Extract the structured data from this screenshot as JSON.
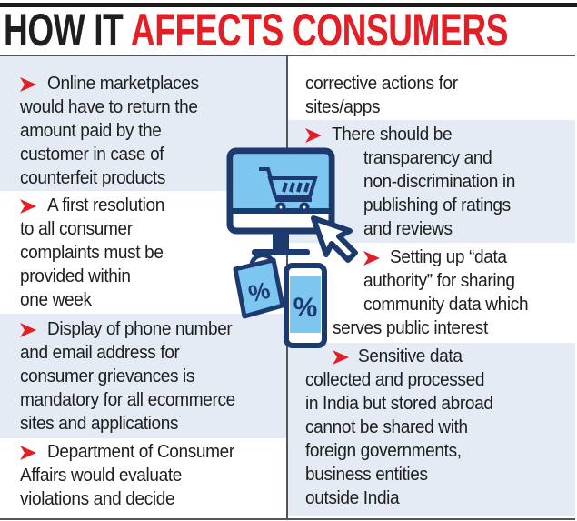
{
  "title": {
    "part1": "HOW IT",
    "part2": "AFFECTS CONSUMERS"
  },
  "colors": {
    "accent_red": "#e31e24",
    "panel_blue": "#e4ebf5",
    "icon_navy": "#1d3a6e",
    "icon_fill": "#7cc6f0"
  },
  "illustration": {
    "icons": [
      "computer-monitor-icon",
      "shopping-cart-icon",
      "cursor-arrow-icon",
      "shopping-bag-percent-icon",
      "smartphone-percent-icon"
    ]
  },
  "left": [
    {
      "lines": [
        "Online marketplaces",
        "would have to return the",
        "amount paid by the",
        "customer in case of",
        "counterfeit products"
      ]
    },
    {
      "lines": [
        "A first resolution",
        "to all consumer",
        "complaints must be",
        "provided within",
        "one week"
      ]
    },
    {
      "lines": [
        "Display of phone number",
        "and email address for",
        "consumer grievances is",
        "mandatory for all ecommerce",
        "sites and applications"
      ]
    },
    {
      "lines": [
        "Department of Consumer",
        "Affairs would evaluate",
        "violations and decide"
      ]
    }
  ],
  "right": [
    {
      "lines": [
        "corrective actions for",
        "sites/apps"
      ]
    },
    {
      "lines": [
        "There should be",
        "transparency and",
        "non-discrimination in",
        "publishing of ratings",
        "and reviews"
      ]
    },
    {
      "lines": [
        "Setting up “data",
        "authority” for sharing",
        "community data which",
        "serves public interest"
      ]
    },
    {
      "lines": [
        "Sensitive data",
        "collected and processed",
        "in India but stored abroad",
        "cannot be shared with",
        "foreign governments,",
        "business entities",
        "outside India"
      ]
    }
  ]
}
